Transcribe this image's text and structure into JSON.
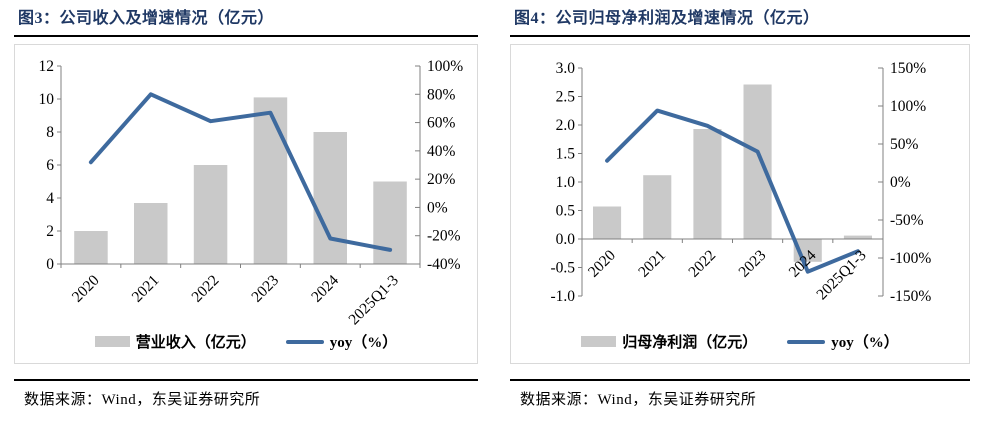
{
  "colors": {
    "title": "#1f3864",
    "bar": "#c9c9c9",
    "line": "#3e6a9e",
    "axis": "#808080",
    "text": "#000000",
    "panel_border": "#d9d9d9",
    "rule": "#000000"
  },
  "chart_data": [
    {
      "type": "bar+line",
      "title": "图3：公司收入及增速情况（亿元）",
      "source": "数据来源：Wind，东吴证券研究所",
      "categories": [
        "2020",
        "2021",
        "2022",
        "2023",
        "2024",
        "2025Q1-3"
      ],
      "series": [
        {
          "name": "营业收入（亿元）",
          "type": "bar",
          "axis": "left",
          "values": [
            2.0,
            3.7,
            6.0,
            10.1,
            8.0,
            5.0
          ]
        },
        {
          "name": "yoy（%）",
          "type": "line",
          "axis": "right",
          "values": [
            32,
            80,
            61,
            67,
            -22,
            -30
          ]
        }
      ],
      "left_axis": {
        "min": 0,
        "max": 12,
        "tick_values": [
          12,
          10,
          8,
          6,
          4,
          2,
          0
        ],
        "tick_labels": [
          "12",
          "10",
          "8",
          "6",
          "4",
          "2",
          "0"
        ]
      },
      "right_axis": {
        "min": -40,
        "max": 100,
        "tick_values": [
          100,
          80,
          60,
          40,
          20,
          0,
          -20,
          -40
        ],
        "tick_labels": [
          "100%",
          "80%",
          "60%",
          "40%",
          "20%",
          "0%",
          "-20%",
          "-40%"
        ]
      },
      "legend": [
        {
          "swatch": "bar",
          "label": "营业收入（亿元）"
        },
        {
          "swatch": "line",
          "label": "yoy（%）"
        }
      ],
      "grid": false,
      "legend_position": "bottom"
    },
    {
      "type": "bar+line",
      "title": "图4：公司归母净利润及增速情况（亿元）",
      "source": "数据来源：Wind，东吴证券研究所",
      "categories": [
        "2020",
        "2021",
        "2022",
        "2023",
        "2024",
        "2025Q1-3"
      ],
      "series": [
        {
          "name": "归母净利润（亿元）",
          "type": "bar",
          "axis": "left",
          "values": [
            0.57,
            1.12,
            1.93,
            2.71,
            -0.4,
            0.06
          ]
        },
        {
          "name": "yoy（%）",
          "type": "line",
          "axis": "right",
          "values": [
            28,
            94,
            74,
            40,
            -118,
            -91
          ]
        }
      ],
      "left_axis": {
        "min": -1.0,
        "max": 3.0,
        "tick_values": [
          3.0,
          2.5,
          2.0,
          1.5,
          1.0,
          0.5,
          0.0,
          -0.5,
          -1.0
        ],
        "tick_labels": [
          "3.0",
          "2.5",
          "2.0",
          "1.5",
          "1.0",
          "0.5",
          "0.0",
          "-0.5",
          "-1.0"
        ]
      },
      "right_axis": {
        "min": -150,
        "max": 150,
        "tick_values": [
          150,
          100,
          50,
          0,
          -50,
          -100,
          -150
        ],
        "tick_labels": [
          "150%",
          "100%",
          "50%",
          "0%",
          "-50%",
          "-100%",
          "-150%"
        ]
      },
      "legend": [
        {
          "swatch": "bar",
          "label": "归母净利润（亿元）"
        },
        {
          "swatch": "line",
          "label": "yoy（%）"
        }
      ],
      "grid": false,
      "legend_position": "bottom"
    }
  ]
}
